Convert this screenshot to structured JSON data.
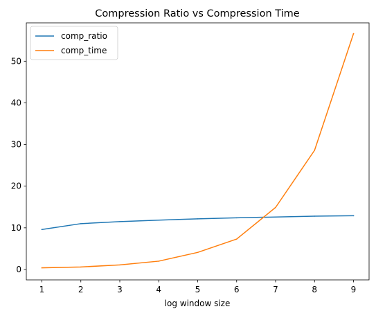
{
  "chart_data": {
    "type": "line",
    "title": "Compression Ratio vs Compression Time",
    "xlabel": "log window size",
    "ylabel": "",
    "x": [
      1,
      2,
      3,
      4,
      5,
      6,
      7,
      8,
      9
    ],
    "xlim": [
      0.6,
      9.4
    ],
    "ylim": [
      -2.5,
      59.2
    ],
    "xticks": [
      1,
      2,
      3,
      4,
      5,
      6,
      7,
      8,
      9
    ],
    "yticks": [
      0,
      10,
      20,
      30,
      40,
      50
    ],
    "grid": false,
    "legend_position": "top-left",
    "series": [
      {
        "name": "comp_ratio",
        "color": "#1f77b4",
        "values": [
          9.6,
          11.0,
          11.5,
          11.85,
          12.15,
          12.4,
          12.6,
          12.8,
          12.9
        ]
      },
      {
        "name": "comp_time",
        "color": "#ff7f0e",
        "values": [
          0.4,
          0.6,
          1.1,
          2.0,
          4.1,
          7.3,
          14.9,
          28.6,
          56.6
        ]
      }
    ]
  }
}
